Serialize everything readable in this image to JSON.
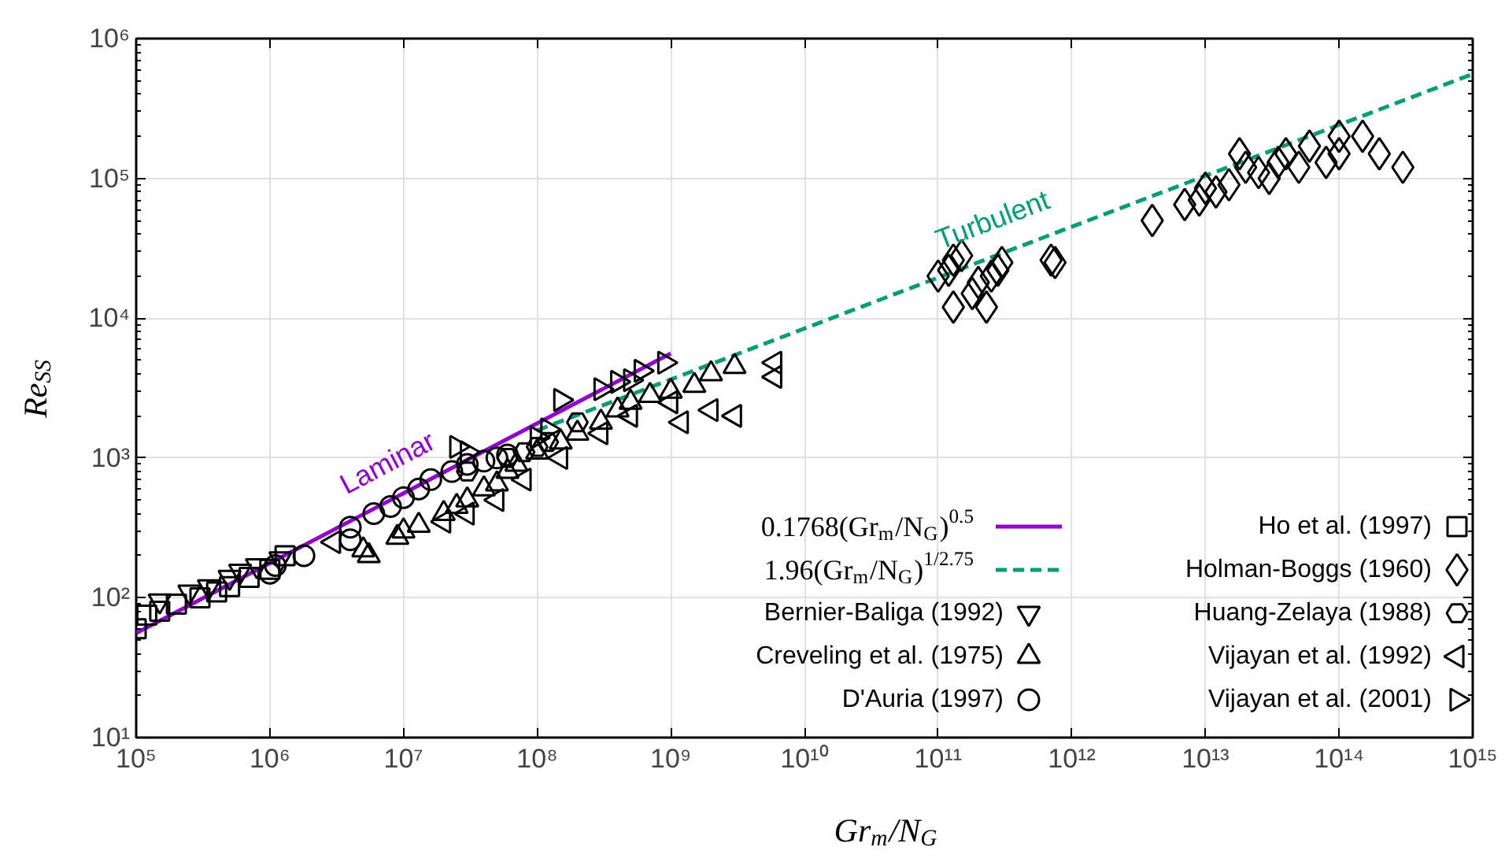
{
  "chart_data": {
    "type": "scatter",
    "xlabel": "Gr$_{m}$/N$_{G}$",
    "ylabel": "Re$_{SS}$",
    "log": "xy",
    "grid": true,
    "legend": "bottom right",
    "xlim": [
      100000,
      1000000000000000
    ],
    "ylim": [
      10,
      1000000
    ],
    "xticks": [
      {
        "value": 100000,
        "label": "10⁵"
      },
      {
        "value": 1000000,
        "label": "10⁶"
      },
      {
        "value": 10000000,
        "label": "10⁷"
      },
      {
        "value": 100000000,
        "label": "10⁸"
      },
      {
        "value": 1000000000,
        "label": "10⁹"
      },
      {
        "value": 10000000000,
        "label": "10¹⁰"
      },
      {
        "value": 100000000000,
        "label": "10¹¹"
      },
      {
        "value": 1000000000000,
        "label": "10¹²"
      },
      {
        "value": 10000000000000,
        "label": "10¹³"
      },
      {
        "value": 100000000000000,
        "label": "10¹⁴"
      },
      {
        "value": 1000000000000000,
        "label": "10¹⁵"
      }
    ],
    "yticks": [
      {
        "value": 10,
        "label": "10¹"
      },
      {
        "value": 100,
        "label": "10²"
      },
      {
        "value": 1000,
        "label": "10³"
      },
      {
        "value": 10000,
        "label": "10⁴"
      },
      {
        "value": 100000,
        "label": "10⁵"
      },
      {
        "value": 1000000,
        "label": "10⁶"
      }
    ],
    "annotations": [
      "Laminar",
      "Turbulent"
    ],
    "series": [
      {
        "name": "0.1768(Gr$_{m}$/N$_{G}$)$^{0.5}$",
        "type": "line",
        "line_style": "solid",
        "color": "#9400d3",
        "x": [
          100000,
          1000000000
        ],
        "values": [
          55.9,
          5591
        ]
      },
      {
        "name": "1.96(Gr$_{m}$/N$_{G}$)$^{1/2.75}$",
        "type": "line",
        "line_style": "dashed",
        "color": "#009e73",
        "x": [
          100000000,
          1000000000000000
        ],
        "values": [
          1576,
          558000
        ]
      },
      {
        "name": "Bernier-Baliga (1992)",
        "marker": "triangle-down",
        "color": "#000000",
        "x": [
          150000,
          250000,
          350000,
          500000,
          600000,
          800000,
          1200000
        ],
        "values": [
          95,
          110,
          120,
          140,
          155,
          170,
          190
        ]
      },
      {
        "name": "Creveling et al. (1975)",
        "marker": "triangle",
        "color": "#000000",
        "x": [
          5000000,
          5500000,
          9000000,
          10000000,
          13000000,
          20000000,
          25000000,
          30000000,
          40000000,
          50000000,
          60000000,
          70000000,
          100000000,
          150000000,
          200000000,
          300000000,
          400000000,
          500000000,
          700000000,
          1000000000,
          1500000000,
          2000000000,
          3000000000
        ],
        "values": [
          220,
          200,
          270,
          300,
          330,
          400,
          450,
          500,
          600,
          650,
          800,
          900,
          1100,
          1300,
          1500,
          1800,
          2200,
          2500,
          2800,
          3000,
          3300,
          4000,
          4500
        ]
      },
      {
        "name": "D'Auria (1997)",
        "marker": "circle",
        "color": "#000000",
        "x": [
          1000000,
          1100000,
          1800000,
          4000000,
          4000000,
          6000000,
          8000000,
          10000000,
          13000000,
          16000000,
          23000000,
          30000000,
          40000000,
          50000000,
          60000000
        ],
        "values": [
          150,
          170,
          200,
          320,
          260,
          400,
          450,
          520,
          600,
          700,
          800,
          900,
          950,
          1000,
          1050
        ]
      },
      {
        "name": "Ho et al. (1997)",
        "marker": "square",
        "color": "#000000",
        "x": [
          100000,
          120000,
          150000,
          200000,
          300000,
          400000,
          500000,
          700000,
          1000000,
          1300000
        ],
        "values": [
          60,
          75,
          80,
          90,
          100,
          110,
          120,
          140,
          160,
          200
        ]
      },
      {
        "name": "Holman-Boggs (1960)",
        "marker": "diamond",
        "color": "#000000",
        "x": [
          100000000000,
          120000000000,
          130000000000,
          150000000000,
          130000000000,
          180000000000,
          200000000000,
          230000000000,
          250000000000,
          280000000000,
          300000000000,
          700000000000,
          750000000000,
          4000000000000,
          7000000000000,
          9000000000000,
          10000000000000,
          12000000000000,
          15000000000000,
          18000000000000,
          20000000000000,
          25000000000000,
          30000000000000,
          35000000000000,
          40000000000000,
          50000000000000,
          60000000000000,
          80000000000000,
          100000000000000,
          150000000000000,
          200000000000000,
          300000000000000,
          100000000000000
        ],
        "values": [
          20000,
          22000,
          26000,
          28000,
          12000,
          15000,
          18000,
          12000,
          20000,
          22000,
          25000,
          26000,
          25000,
          50000,
          65000,
          70000,
          85000,
          80000,
          90000,
          150000,
          120000,
          110000,
          100000,
          130000,
          150000,
          120000,
          170000,
          130000,
          200000,
          200000,
          150000,
          120000,
          150000
        ]
      },
      {
        "name": "Huang-Zelaya (1988)",
        "color": "#000000",
        "x": [
          30000000,
          60000000,
          80000000,
          100000000,
          120000000,
          200000000
        ],
        "values": [
          800,
          1000,
          1100,
          1200,
          1300,
          1800
        ]
      },
      {
        "name": "Vijayan et al. (1992)",
        "marker": "triangle-left",
        "color": "#000000",
        "x": [
          3000000,
          20000000,
          30000000,
          50000000,
          80000000,
          150000000,
          300000000,
          500000000,
          1000000000,
          1200000000,
          2000000000,
          3000000000,
          6000000000,
          6000000000
        ],
        "values": [
          250,
          350,
          400,
          500,
          700,
          1000,
          1500,
          2000,
          2500,
          1800,
          2200,
          2000,
          3800,
          4800
        ]
      },
      {
        "name": "Vijayan et al. (2001)",
        "marker": "triangle-right",
        "color": "#000000",
        "x": [
          25000000,
          30000000,
          100000000,
          120000000,
          150000000,
          300000000,
          400000000,
          500000000,
          600000000,
          900000000
        ],
        "values": [
          1200,
          1100,
          1400,
          1600,
          2600,
          3100,
          3500,
          3600,
          4200,
          4800
        ]
      }
    ]
  }
}
